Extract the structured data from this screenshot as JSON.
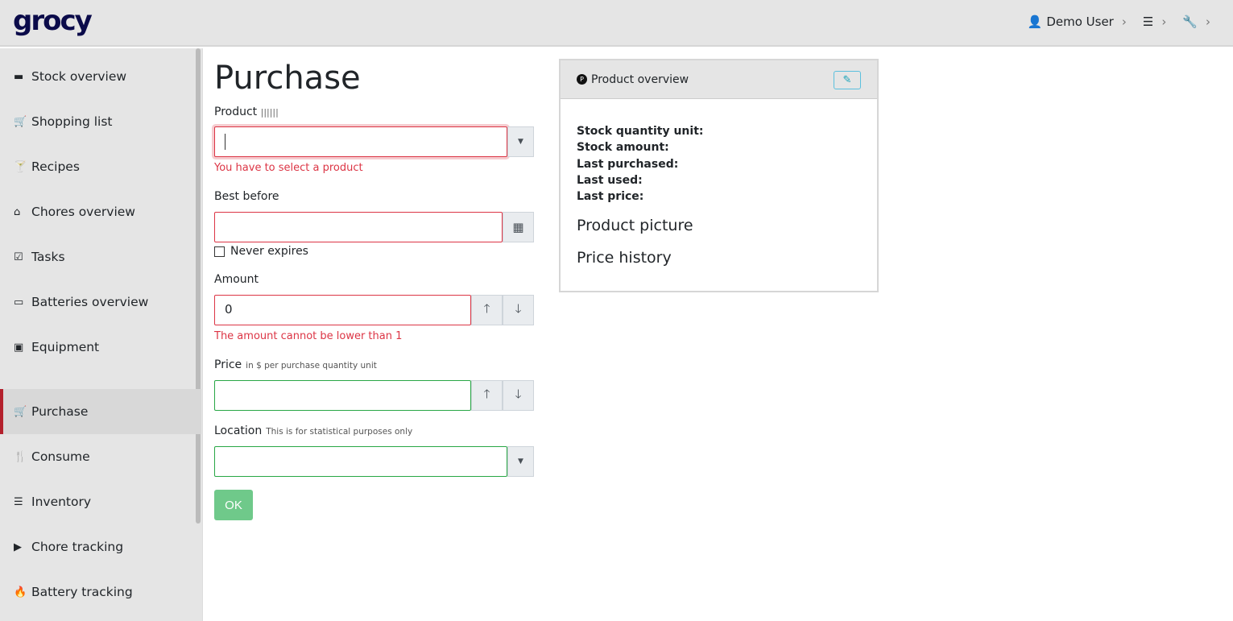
{
  "app": {
    "logo": "grocy"
  },
  "topbar": {
    "user": "Demo User",
    "settings_icon": "sliders-icon",
    "tools_icon": "wrench-icon"
  },
  "sidebar": {
    "items": [
      {
        "label": "Stock overview",
        "icon": "box-icon",
        "glyph": "▬"
      },
      {
        "label": "Shopping list",
        "icon": "cart-icon",
        "glyph": "🛒"
      },
      {
        "label": "Recipes",
        "icon": "cocktail-icon",
        "glyph": "🍸"
      },
      {
        "label": "Chores overview",
        "icon": "home-icon",
        "glyph": "⌂"
      },
      {
        "label": "Tasks",
        "icon": "tasks-icon",
        "glyph": "☑"
      },
      {
        "label": "Batteries overview",
        "icon": "battery-icon",
        "glyph": "▭"
      },
      {
        "label": "Equipment",
        "icon": "toolbox-icon",
        "glyph": "▣"
      },
      {
        "label": "Purchase",
        "icon": "cart-icon",
        "glyph": "🛒",
        "active": true
      },
      {
        "label": "Consume",
        "icon": "utensils-icon",
        "glyph": "🍴"
      },
      {
        "label": "Inventory",
        "icon": "list-icon",
        "glyph": "☰"
      },
      {
        "label": "Chore tracking",
        "icon": "play-icon",
        "glyph": "▶"
      },
      {
        "label": "Battery tracking",
        "icon": "fire-icon",
        "glyph": "🔥"
      }
    ]
  },
  "form": {
    "title": "Purchase",
    "product_label": "Product",
    "product_value": "",
    "product_error": "You have to select a product",
    "best_before_label": "Best before",
    "best_before_value": "",
    "never_expires_label": "Never expires",
    "never_expires_checked": false,
    "amount_label": "Amount",
    "amount_value": "0",
    "amount_error": "The amount cannot be lower than 1",
    "price_label": "Price",
    "price_hint": "in $ per purchase quantity unit",
    "price_value": "",
    "location_label": "Location",
    "location_hint": "This is for statistical purposes only",
    "location_value": "",
    "ok_label": "OK"
  },
  "card": {
    "title": "Product overview",
    "fields": [
      "Stock quantity unit:",
      "Stock amount:",
      "Last purchased:",
      "Last used:",
      "Last price:"
    ],
    "picture_heading": "Product picture",
    "price_history_heading": "Price history"
  },
  "colors": {
    "error": "#dc3545",
    "valid": "#28a745",
    "active_marker": "#b3202c",
    "ok_button": "#6fc98a",
    "logo": "#0b0b4a"
  }
}
